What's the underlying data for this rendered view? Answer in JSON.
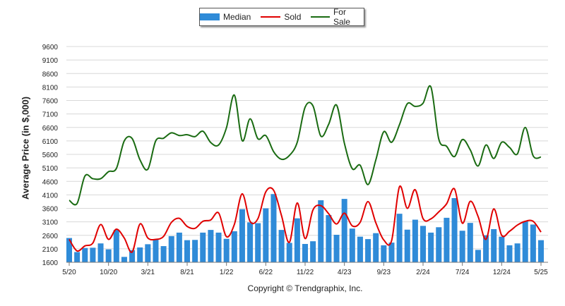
{
  "legend": {
    "median_label": "Median",
    "sold_label": "Sold",
    "for_sale_label": "For Sale"
  },
  "copyright": "Copyright © Trendgraphix, Inc.",
  "colors": {
    "median": "#2f8bd8",
    "sold": "#e00000",
    "for_sale": "#1a6b12",
    "grid": "#d8d8d8"
  },
  "chart_data": {
    "type": "bar",
    "ylabel": "Average Price (in $,000)",
    "ylim": [
      1600,
      9600
    ],
    "y_ticks": [
      1600,
      2100,
      2600,
      3100,
      3600,
      4100,
      4600,
      5100,
      5600,
      6100,
      6600,
      7100,
      7600,
      8100,
      8600,
      9100,
      9600
    ],
    "x_tick_labels": [
      "5/20",
      "10/20",
      "3/21",
      "8/21",
      "1/22",
      "6/22",
      "11/22",
      "4/23",
      "9/23",
      "2/24",
      "7/24",
      "12/24",
      "5/25"
    ],
    "grid": true,
    "legend_position": "top-center",
    "series": [
      {
        "name": "Median",
        "kind": "bar",
        "values": [
          2500,
          1980,
          2130,
          2140,
          2300,
          2080,
          2800,
          1800,
          2050,
          2150,
          2270,
          2450,
          2200,
          2570,
          2700,
          2420,
          2430,
          2700,
          2800,
          2700,
          2470,
          2750,
          3570,
          3080,
          3050,
          3600,
          4130,
          2800,
          2320,
          3230,
          2280,
          2380,
          3900,
          3350,
          2620,
          3950,
          2850,
          2550,
          2460,
          2680,
          2230,
          2330,
          3400,
          2810,
          3180,
          2950,
          2700,
          2900,
          3250,
          3980,
          2770,
          3060,
          2060,
          2600,
          2830,
          2550,
          2230,
          2300,
          3120,
          3000,
          2420
        ]
      },
      {
        "name": "Sold",
        "kind": "line",
        "values": [
          2450,
          2020,
          2210,
          2310,
          3000,
          2450,
          2830,
          2500,
          1980,
          3020,
          2500,
          2450,
          2560,
          3080,
          3230,
          2930,
          2860,
          3120,
          3170,
          3430,
          2550,
          3000,
          4140,
          3120,
          3220,
          4210,
          4270,
          3330,
          2340,
          3800,
          2480,
          3540,
          3700,
          3400,
          3020,
          3420,
          2950,
          3080,
          3850,
          3060,
          2430,
          2400,
          4400,
          3600,
          4290,
          3220,
          3210,
          3470,
          3770,
          4320,
          3050,
          3860,
          3300,
          2450,
          3580,
          2600,
          2750,
          2980,
          3120,
          3120,
          2720
        ]
      },
      {
        "name": "For Sale",
        "kind": "line",
        "values": [
          3900,
          3780,
          4800,
          4700,
          4700,
          4960,
          5080,
          6100,
          6190,
          5400,
          5050,
          6100,
          6200,
          6400,
          6300,
          6330,
          6260,
          6460,
          6040,
          5950,
          6590,
          7800,
          6110,
          6920,
          6180,
          6300,
          5700,
          5420,
          5560,
          6050,
          7350,
          7400,
          6280,
          6720,
          7430,
          6010,
          5070,
          5200,
          4480,
          5400,
          6440,
          6050,
          6700,
          7480,
          7380,
          7500,
          8100,
          6170,
          5900,
          5520,
          6150,
          5770,
          5170,
          5950,
          5450,
          6050,
          5860,
          5620,
          6600,
          5550,
          5500
        ]
      }
    ]
  }
}
